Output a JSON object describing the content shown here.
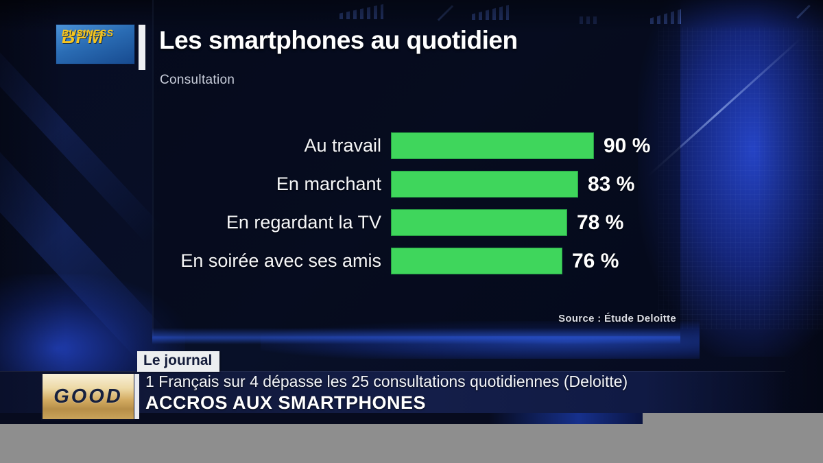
{
  "header": {
    "logo_line1": "BFM",
    "logo_line2": "BUSINESS",
    "title": "Les smartphones au quotidien",
    "subtitle": "Consultation"
  },
  "chart_data": {
    "type": "bar",
    "orientation": "horizontal",
    "title": "Les smartphones au quotidien",
    "subtitle": "Consultation",
    "categories": [
      "Au travail",
      "En marchant",
      "En regardant la TV",
      "En soirée avec ses amis"
    ],
    "values": [
      90,
      83,
      78,
      76
    ],
    "value_suffix": " %",
    "xlim": [
      0,
      100
    ],
    "grid": false,
    "bar_color": "#3fd65c",
    "source": "Source : Étude Deloitte"
  },
  "lower_third": {
    "program_logo": "GOOD",
    "badge": "Le journal",
    "headline": "1 Français sur 4 dépasse les 25 consultations quotidiennes (Deloitte)",
    "topic": "ACCROS AUX SMARTPHONES"
  },
  "colors": {
    "bar_green": "#3fd65c",
    "bfm_blue": "#2a6cb4",
    "bfm_yellow": "#f6c51f",
    "footer_gray": "#8e8e8e",
    "background_navy": "#081028"
  }
}
